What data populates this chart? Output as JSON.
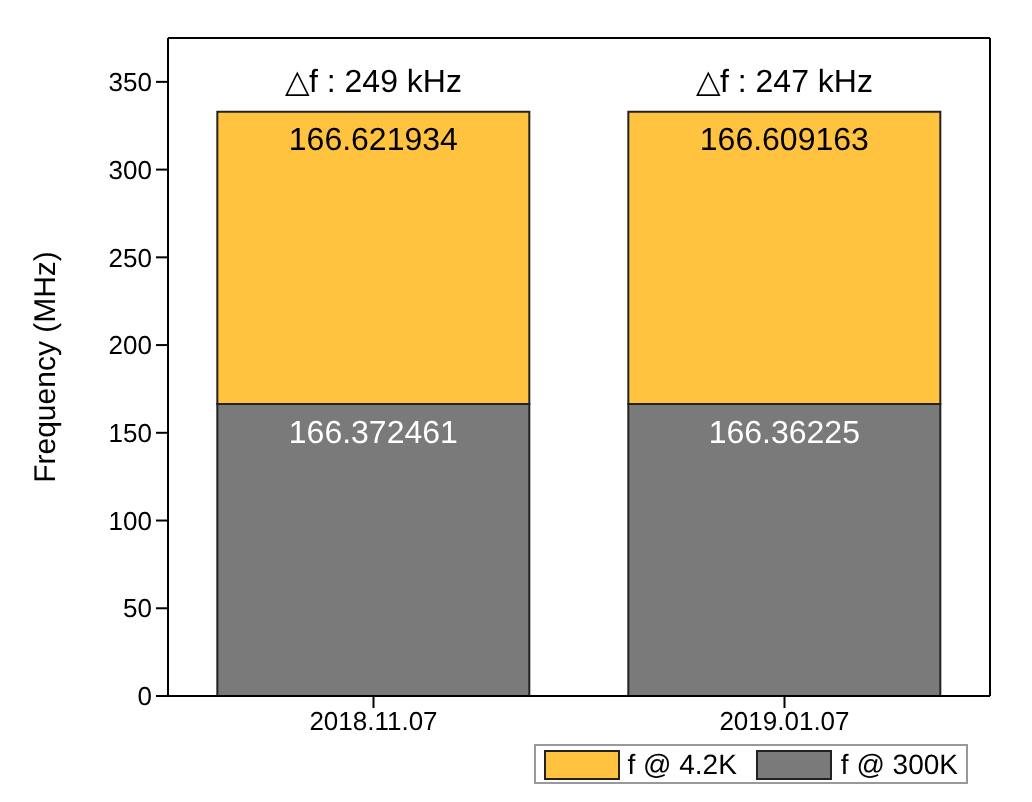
{
  "chart_data": {
    "type": "bar",
    "stacked": true,
    "ylabel": "Frequency (MHz)",
    "categories": [
      "2018.11.07",
      "2019.01.07"
    ],
    "series": [
      {
        "name": "f @ 300K",
        "color": "#7a7a7a",
        "values": [
          166.372461,
          166.36225
        ]
      },
      {
        "name": "f @ 4.2K",
        "color": "#ffc33f",
        "values": [
          166.621934,
          166.609163
        ]
      }
    ],
    "ylim": [
      0,
      375
    ],
    "yticks": [
      0,
      50,
      100,
      150,
      200,
      250,
      300,
      350
    ],
    "data_labels": true,
    "legend": "bottom right",
    "grid": false,
    "annotations": [
      "△f : 249 kHz",
      "△f : 247 kHz"
    ]
  }
}
